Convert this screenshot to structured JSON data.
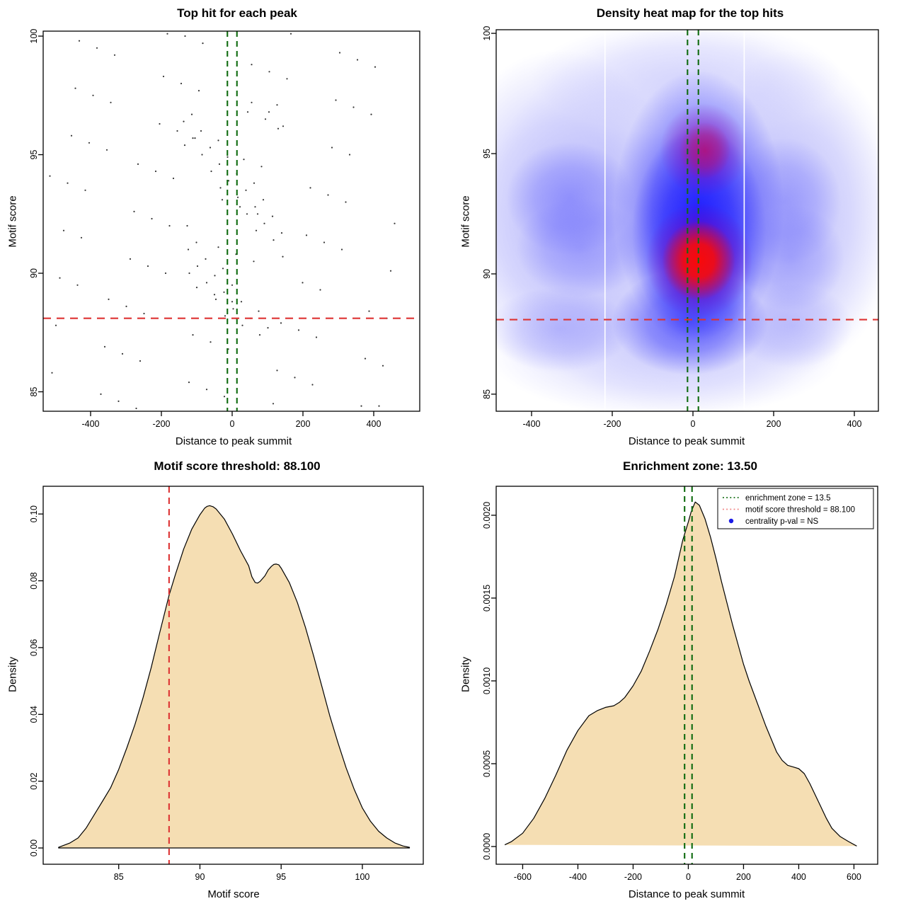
{
  "colors": {
    "threshold_red": "#dd3333",
    "zone_green": "#0f6b0f",
    "legend_red": "#f08080",
    "legend_dot_blue": "#1a1ae6",
    "point": "#1a1a1a",
    "area_fill": "#f5deb3",
    "curve_stroke": "#000000",
    "axis": "#000000",
    "heat_gridline_white": "#ffffff"
  },
  "chart_data": [
    {
      "id": "top-hit-scatter",
      "type": "scatter",
      "title": "Top hit for each peak",
      "xlabel": "Distance to peak summit",
      "ylabel": "Motif score",
      "xlim": [
        -534,
        530
      ],
      "ylim": [
        84.18,
        100.21
      ],
      "xticks": [
        -400,
        -200,
        0,
        200,
        400
      ],
      "xtick_labels": [
        "-400",
        "-200",
        "0",
        "200",
        "400"
      ],
      "yticks": [
        85,
        90,
        95,
        100
      ],
      "ytick_labels": [
        "85",
        "90",
        "95",
        "100"
      ],
      "grid": false,
      "hline_threshold": 88.1,
      "vlines_zone": [
        -13.5,
        13.5
      ],
      "points": [
        [
          -437,
          89.5
        ],
        [
          -354,
          95.2
        ],
        [
          -271,
          84.3
        ],
        [
          -188,
          90.0
        ],
        [
          -105,
          95.7
        ],
        [
          -22,
          84.8
        ],
        [
          61,
          90.5
        ],
        [
          144,
          96.2
        ],
        [
          227,
          85.3
        ],
        [
          310,
          91.0
        ],
        [
          393,
          96.7
        ],
        [
          -509,
          85.8
        ],
        [
          -426,
          91.5
        ],
        [
          -343,
          97.2
        ],
        [
          -260,
          86.3
        ],
        [
          -177,
          92.0
        ],
        [
          -94,
          97.7
        ],
        [
          -11,
          86.8
        ],
        [
          72,
          92.5
        ],
        [
          155,
          98.2
        ],
        [
          238,
          87.3
        ],
        [
          321,
          93.0
        ],
        [
          404,
          98.7
        ],
        [
          -498,
          87.8
        ],
        [
          -415,
          93.5
        ],
        [
          -332,
          99.2
        ],
        [
          -249,
          88.3
        ],
        [
          -166,
          94.0
        ],
        [
          -83,
          99.7
        ],
        [
          0,
          88.8
        ],
        [
          83,
          94.5
        ],
        [
          166,
          100.1
        ],
        [
          249,
          89.3
        ],
        [
          332,
          95.0
        ],
        [
          415,
          84.4
        ],
        [
          -487,
          89.8
        ],
        [
          -404,
          95.5
        ],
        [
          -321,
          84.6
        ],
        [
          -238,
          90.3
        ],
        [
          -155,
          96.0
        ],
        [
          -72,
          85.1
        ],
        [
          11,
          90.8
        ],
        [
          94,
          96.5
        ],
        [
          177,
          85.6
        ],
        [
          260,
          91.3
        ],
        [
          343,
          97.0
        ],
        [
          426,
          86.1
        ],
        [
          -476,
          91.8
        ],
        [
          -393,
          97.5
        ],
        [
          -310,
          86.6
        ],
        [
          -227,
          92.3
        ],
        [
          -144,
          98.0
        ],
        [
          -61,
          87.1
        ],
        [
          22,
          92.8
        ],
        [
          105,
          98.5
        ],
        [
          188,
          87.6
        ],
        [
          271,
          93.3
        ],
        [
          354,
          99.0
        ],
        [
          437,
          88.1
        ],
        [
          -465,
          93.8
        ],
        [
          -382,
          99.5
        ],
        [
          -299,
          88.6
        ],
        [
          -216,
          94.3
        ],
        [
          -133,
          100.0
        ],
        [
          -50,
          89.1
        ],
        [
          33,
          94.8
        ],
        [
          116,
          84.5
        ],
        [
          199,
          89.6
        ],
        [
          282,
          95.3
        ],
        [
          365,
          84.4
        ],
        [
          448,
          90.1
        ],
        [
          -454,
          95.8
        ],
        [
          -371,
          84.9
        ],
        [
          -288,
          90.6
        ],
        [
          -205,
          96.3
        ],
        [
          -122,
          85.4
        ],
        [
          -39,
          91.1
        ],
        [
          44,
          96.8
        ],
        [
          127,
          85.9
        ],
        [
          210,
          91.6
        ],
        [
          293,
          97.3
        ],
        [
          376,
          86.4
        ],
        [
          459,
          92.1
        ],
        [
          -443,
          97.8
        ],
        [
          -360,
          86.9
        ],
        [
          -277,
          92.6
        ],
        [
          -194,
          98.3
        ],
        [
          -111,
          87.4
        ],
        [
          -28,
          93.1
        ],
        [
          55,
          98.8
        ],
        [
          138,
          87.9
        ],
        [
          221,
          93.6
        ],
        [
          304,
          99.3
        ],
        [
          387,
          88.4
        ],
        [
          -515,
          94.1
        ],
        [
          -432,
          99.8
        ],
        [
          -349,
          88.9
        ],
        [
          -266,
          94.6
        ],
        [
          -183,
          100.1
        ],
        [
          -100,
          89.4
        ],
        [
          -39,
          95.6
        ],
        [
          62,
          93.8
        ],
        [
          -127,
          92.0
        ],
        [
          -26,
          90.2
        ],
        [
          75,
          88.4
        ],
        [
          -114,
          96.7
        ],
        [
          -13,
          94.9
        ],
        [
          88,
          93.1
        ],
        [
          -101,
          91.3
        ],
        [
          0,
          89.5
        ],
        [
          101,
          87.7
        ],
        [
          -88,
          96.0
        ],
        [
          13,
          94.2
        ],
        [
          114,
          92.4
        ],
        [
          -75,
          90.6
        ],
        [
          26,
          88.8
        ],
        [
          127,
          97.1
        ],
        [
          -62,
          95.3
        ],
        [
          39,
          93.5
        ],
        [
          140,
          91.7
        ],
        [
          -49,
          89.9
        ],
        [
          52,
          88.1
        ],
        [
          -137,
          96.4
        ],
        [
          -36,
          94.6
        ],
        [
          65,
          92.8
        ],
        [
          -124,
          91.0
        ],
        [
          -23,
          89.2
        ],
        [
          78,
          87.4
        ],
        [
          -111,
          95.7
        ],
        [
          -10,
          93.9
        ],
        [
          91,
          92.1
        ],
        [
          -98,
          90.3
        ],
        [
          3,
          88.5
        ],
        [
          104,
          96.8
        ],
        [
          -85,
          95.0
        ],
        [
          16,
          93.2
        ],
        [
          117,
          91.4
        ],
        [
          -72,
          89.6
        ],
        [
          29,
          87.8
        ],
        [
          130,
          96.1
        ],
        [
          -59,
          94.3
        ],
        [
          42,
          92.5
        ],
        [
          143,
          90.7
        ],
        [
          -46,
          88.9
        ],
        [
          55,
          97.2
        ],
        [
          -134,
          95.4
        ],
        [
          -33,
          93.6
        ],
        [
          68,
          91.8
        ],
        [
          -121,
          90.0
        ],
        [
          -20,
          88.2
        ]
      ]
    },
    {
      "id": "top-hit-density-heatmap",
      "type": "heatmap",
      "title": "Density heat map for the top hits",
      "xlabel": "Distance to peak summit",
      "ylabel": "Motif score",
      "xlim": [
        -487.7,
        459.6
      ],
      "ylim": [
        84.29,
        100.15
      ],
      "xticks": [
        -400,
        -200,
        0,
        200,
        400
      ],
      "xtick_labels": [
        "-400",
        "-200",
        "0",
        "200",
        "400"
      ],
      "yticks": [
        85,
        90,
        95,
        100
      ],
      "ytick_labels": [
        "85",
        "90",
        "95",
        "100"
      ],
      "hline_threshold": 88.1,
      "vlines_zone": [
        -13.5,
        13.5
      ],
      "white_gridlines_x": [
        -218,
        127
      ],
      "density_hotspots": [
        {
          "x": 13,
          "y": 90.5,
          "note": "maximum density (red core)"
        },
        {
          "x": 10,
          "y": 95.2,
          "note": "secondary high density (red-purple)"
        }
      ],
      "blobs": [
        {
          "fx": 0.5,
          "fy": 0.497,
          "rx": 0.537,
          "ry": 0.51,
          "c": "200,200,250",
          "a": 0.85
        },
        {
          "fx": 0.165,
          "fy": 0.479,
          "rx": 0.315,
          "ry": 0.427,
          "c": "140,140,250",
          "a": 0.5
        },
        {
          "fx": 0.776,
          "fy": 0.479,
          "rx": 0.278,
          "ry": 0.427,
          "c": "150,150,250",
          "a": 0.45
        },
        {
          "fx": 0.443,
          "fy": 0.85,
          "rx": 0.463,
          "ry": 0.167,
          "c": "160,160,252",
          "a": 0.4
        },
        {
          "fx": 0.498,
          "fy": 0.126,
          "rx": 0.407,
          "ry": 0.148,
          "c": "175,175,252",
          "a": 0.38
        },
        {
          "fx": 0.531,
          "fy": 0.469,
          "rx": 0.222,
          "ry": 0.362,
          "c": "30,30,252",
          "a": 0.75
        },
        {
          "fx": 0.531,
          "fy": 0.534,
          "rx": 0.176,
          "ry": 0.278,
          "c": "8,8,255",
          "a": 0.7
        },
        {
          "fx": 0.507,
          "fy": 0.766,
          "rx": 0.204,
          "ry": 0.139,
          "c": "25,25,250",
          "a": 0.6
        },
        {
          "fx": 0.193,
          "fy": 0.442,
          "rx": 0.167,
          "ry": 0.148,
          "c": "90,90,252",
          "a": 0.45
        },
        {
          "fx": 0.22,
          "fy": 0.571,
          "rx": 0.167,
          "ry": 0.13,
          "c": "100,100,252",
          "a": 0.4
        },
        {
          "fx": 0.165,
          "fy": 0.785,
          "rx": 0.185,
          "ry": 0.111,
          "c": "110,110,250",
          "a": 0.35
        },
        {
          "fx": 0.754,
          "fy": 0.451,
          "rx": 0.148,
          "ry": 0.167,
          "c": "95,95,252",
          "a": 0.4
        },
        {
          "fx": 0.772,
          "fy": 0.599,
          "rx": 0.139,
          "ry": 0.139,
          "c": "105,105,250",
          "a": 0.38
        },
        {
          "fx": 0.776,
          "fy": 0.776,
          "rx": 0.157,
          "ry": 0.111,
          "c": "120,120,250",
          "a": 0.3
        },
        {
          "fx": 0.543,
          "fy": 0.315,
          "rx": 0.115,
          "ry": 0.122,
          "c": "150,0,170",
          "a": 0.55
        },
        {
          "fx": 0.546,
          "fy": 0.317,
          "rx": 0.067,
          "ry": 0.074,
          "c": "215,0,60",
          "a": 0.5
        },
        {
          "fx": 0.531,
          "fy": 0.605,
          "rx": 0.139,
          "ry": 0.152,
          "c": "140,0,170",
          "a": 0.75
        },
        {
          "fx": 0.53,
          "fy": 0.605,
          "rx": 0.096,
          "ry": 0.104,
          "c": "255,10,0",
          "a": 0.95,
          "core": true
        }
      ]
    },
    {
      "id": "motif-score-density",
      "type": "area",
      "title": "Motif score threshold: 88.100",
      "xlabel": "Motif score",
      "ylabel": "Density",
      "xlim": [
        80.35,
        103.75
      ],
      "ylim": [
        -0.00487,
        0.1083
      ],
      "xticks": [
        85,
        90,
        95,
        100
      ],
      "xtick_labels": [
        "85",
        "90",
        "95",
        "100"
      ],
      "yticks": [
        0,
        0.02,
        0.04,
        0.06,
        0.08,
        0.1
      ],
      "ytick_labels": [
        "0.00",
        "0.02",
        "0.04",
        "0.06",
        "0.08",
        "0.10"
      ],
      "vline_threshold": 88.1,
      "curve_x": [
        81.3,
        82,
        82.5,
        83,
        83.5,
        84,
        84.5,
        85,
        85.5,
        86,
        86.5,
        87,
        87.5,
        88.1,
        88.5,
        89,
        89.5,
        90,
        90.3,
        90.45,
        90.6,
        90.8,
        91,
        91.5,
        92,
        92.5,
        93,
        93.2,
        93.4,
        93.55,
        93.7,
        94,
        94.2,
        94.4,
        94.55,
        94.7,
        94.85,
        95,
        95.5,
        96,
        96.5,
        97,
        97.5,
        98,
        98.5,
        99,
        99.5,
        100,
        100.5,
        101,
        101.5,
        102,
        102.5,
        102.9
      ],
      "curve_y": [
        0.0002,
        0.0015,
        0.003,
        0.006,
        0.01,
        0.014,
        0.018,
        0.0235,
        0.03,
        0.037,
        0.045,
        0.054,
        0.064,
        0.0757,
        0.082,
        0.0895,
        0.0955,
        0.0998,
        0.1018,
        0.1023,
        0.1025,
        0.1022,
        0.1015,
        0.0985,
        0.094,
        0.089,
        0.0845,
        0.0812,
        0.0795,
        0.0793,
        0.0798,
        0.0815,
        0.0832,
        0.0843,
        0.0849,
        0.085,
        0.0848,
        0.0838,
        0.0795,
        0.0735,
        0.066,
        0.0575,
        0.0485,
        0.0395,
        0.0315,
        0.024,
        0.0175,
        0.012,
        0.008,
        0.005,
        0.003,
        0.0015,
        0.0006,
        0.0002
      ]
    },
    {
      "id": "summit-distance-density",
      "type": "area",
      "title": "Enrichment zone: 13.50",
      "xlabel": "Distance to peak summit",
      "ylabel": "Density",
      "xlim": [
        -696,
        686
      ],
      "ylim": [
        -0.000107,
        0.002175
      ],
      "xticks": [
        -600,
        -400,
        -200,
        0,
        200,
        400,
        600
      ],
      "xtick_labels": [
        "-600",
        "-400",
        "-200",
        "0",
        "200",
        "400",
        "600"
      ],
      "yticks": [
        0,
        0.0005,
        0.001,
        0.0015,
        0.002
      ],
      "ytick_labels": [
        "0.0000",
        "0.0005",
        "0.0010",
        "0.0015",
        "0.0020"
      ],
      "vlines_zone": [
        -13.5,
        13.5
      ],
      "legend": [
        {
          "marker": "dotted-line",
          "color_key": "zone_green",
          "label": "enrichment zone = 13.5"
        },
        {
          "marker": "dotted-line",
          "color_key": "legend_red",
          "label": "motif score threshold = 88.100"
        },
        {
          "marker": "dot",
          "color_key": "legend_dot_blue",
          "label": "centrality p-val = NS"
        }
      ],
      "curve_x": [
        -665,
        -640,
        -600,
        -560,
        -520,
        -480,
        -440,
        -400,
        -360,
        -330,
        -300,
        -270,
        -250,
        -230,
        -200,
        -170,
        -140,
        -110,
        -80,
        -50,
        -20,
        0,
        10,
        25,
        40,
        60,
        80,
        100,
        120,
        140,
        160,
        180,
        200,
        220,
        240,
        260,
        280,
        300,
        320,
        340,
        360,
        380,
        400,
        420,
        440,
        460,
        480,
        500,
        520,
        550,
        580,
        610,
        635
      ],
      "curve_y": [
        1e-05,
        3e-05,
        8e-05,
        0.00017,
        0.00029,
        0.00043,
        0.00058,
        0.0007,
        0.00079,
        0.00082,
        0.00084,
        0.00085,
        0.00087,
        0.0009,
        0.00097,
        0.00106,
        0.00118,
        0.00131,
        0.00146,
        0.00163,
        0.00185,
        0.00196,
        0.00202,
        0.00208,
        0.00206,
        0.00198,
        0.00187,
        0.00174,
        0.0016,
        0.00147,
        0.00134,
        0.00122,
        0.0011,
        0.001,
        0.00091,
        0.00082,
        0.00073,
        0.00065,
        0.00057,
        0.00052,
        0.00049,
        0.00048,
        0.00047,
        0.00044,
        0.00038,
        0.00031,
        0.00024,
        0.00017,
        0.00011,
        6e-05,
        3e-05,
        3e-06
      ]
    }
  ]
}
